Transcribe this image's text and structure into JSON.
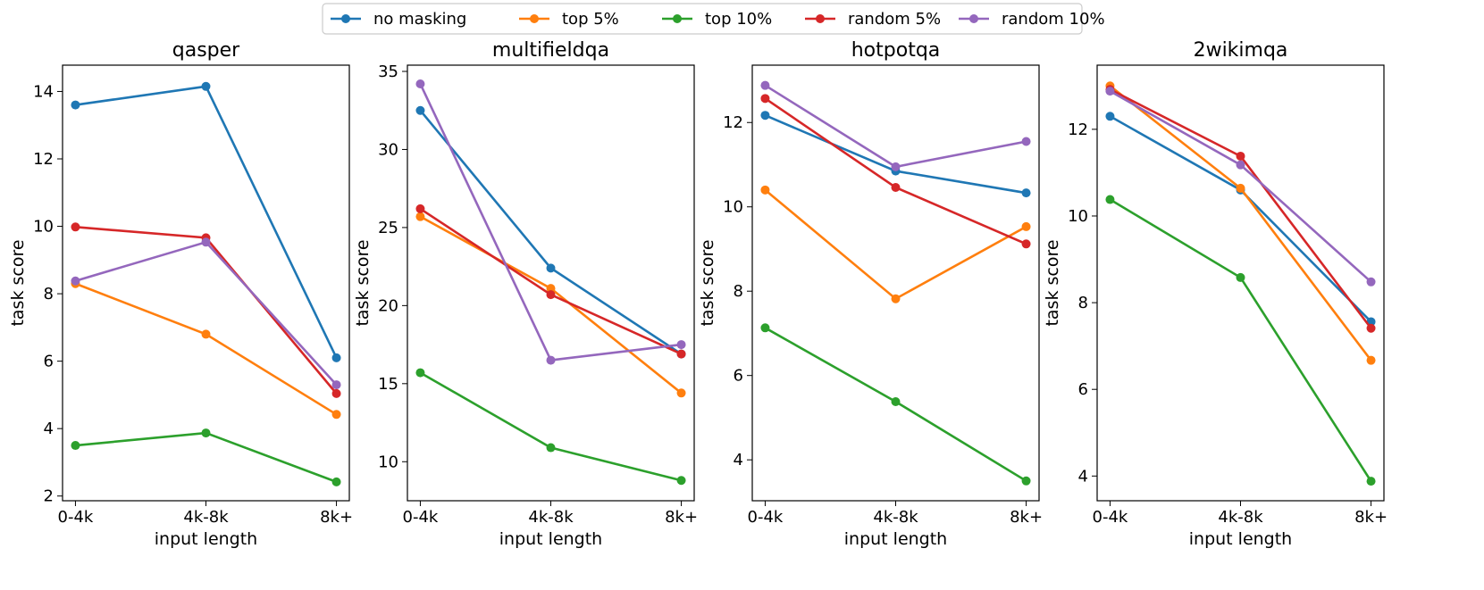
{
  "chart_data": {
    "type": "line",
    "legend": {
      "placement": "top-center",
      "entries": [
        "no masking",
        "top 5%",
        "top 10%",
        "random 5%",
        "random 10%"
      ]
    },
    "series_colors": {
      "no masking": "#1f77b4",
      "top 5%": "#ff7f0e",
      "top 10%": "#2ca02c",
      "random 5%": "#d62728",
      "random 10%": "#9467bd"
    },
    "panels": [
      {
        "title": "qasper",
        "categories": [
          "0-4k",
          "4k-8k",
          "8k+"
        ],
        "xlabel": "input length",
        "ylabel": "task score",
        "ylim": [
          1.86,
          14.78
        ],
        "yticks": [
          2,
          4,
          6,
          8,
          10,
          12,
          14
        ],
        "grid": false,
        "series": [
          {
            "name": "no masking",
            "values": [
              13.6,
              14.15,
              6.1
            ]
          },
          {
            "name": "top 5%",
            "values": [
              8.3,
              6.8,
              4.42
            ]
          },
          {
            "name": "top 10%",
            "values": [
              3.5,
              3.87,
              2.42
            ]
          },
          {
            "name": "random 5%",
            "values": [
              9.98,
              9.66,
              5.04
            ]
          },
          {
            "name": "random 10%",
            "values": [
              8.38,
              9.53,
              5.3
            ]
          }
        ]
      },
      {
        "title": "multifieldqa",
        "categories": [
          "0-4k",
          "4k-8k",
          "8k+"
        ],
        "xlabel": "input length",
        "ylabel": "task score",
        "ylim": [
          7.5,
          35.4
        ],
        "yticks": [
          10,
          15,
          20,
          25,
          30,
          35
        ],
        "grid": false,
        "series": [
          {
            "name": "no masking",
            "values": [
              32.5,
              22.4,
              16.9
            ]
          },
          {
            "name": "top 5%",
            "values": [
              25.7,
              21.1,
              14.4
            ]
          },
          {
            "name": "top 10%",
            "values": [
              15.7,
              10.9,
              8.8
            ]
          },
          {
            "name": "random 5%",
            "values": [
              26.2,
              20.7,
              16.9
            ]
          },
          {
            "name": "random 10%",
            "values": [
              34.2,
              16.5,
              17.5
            ]
          }
        ]
      },
      {
        "title": "hotpotqa",
        "categories": [
          "0-4k",
          "4k-8k",
          "8k+"
        ],
        "xlabel": "input length",
        "ylabel": "task score",
        "ylim": [
          3.03,
          13.36
        ],
        "yticks": [
          4,
          6,
          8,
          10,
          12
        ],
        "grid": false,
        "series": [
          {
            "name": "no masking",
            "values": [
              12.17,
              10.85,
              10.33
            ]
          },
          {
            "name": "top 5%",
            "values": [
              10.4,
              7.82,
              9.53
            ]
          },
          {
            "name": "top 10%",
            "values": [
              7.13,
              5.38,
              3.5
            ]
          },
          {
            "name": "random 5%",
            "values": [
              12.57,
              10.46,
              9.12
            ]
          },
          {
            "name": "random 10%",
            "values": [
              12.88,
              10.95,
              11.55
            ]
          }
        ]
      },
      {
        "title": "2wikimqa",
        "categories": [
          "0-4k",
          "4k-8k",
          "8k+"
        ],
        "xlabel": "input length",
        "ylabel": "task score",
        "ylim": [
          3.43,
          13.48
        ],
        "yticks": [
          4,
          6,
          8,
          10,
          12
        ],
        "grid": false,
        "series": [
          {
            "name": "no masking",
            "values": [
              12.3,
              10.6,
              7.56
            ]
          },
          {
            "name": "top 5%",
            "values": [
              13.0,
              10.64,
              6.67
            ]
          },
          {
            "name": "top 10%",
            "values": [
              10.38,
              8.58,
              3.88
            ]
          },
          {
            "name": "random 5%",
            "values": [
              12.92,
              11.38,
              7.41
            ]
          },
          {
            "name": "random 10%",
            "values": [
              12.88,
              11.18,
              8.48
            ]
          }
        ]
      }
    ]
  }
}
